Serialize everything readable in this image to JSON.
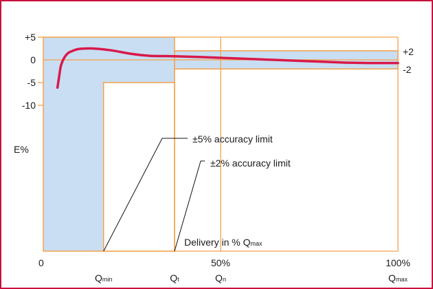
{
  "chart_data": {
    "type": "line",
    "colors": {
      "frame": "#c8103e",
      "band_fill": "#c9def2",
      "band_stroke": "#f5a04a",
      "curve": "#d8194a",
      "leader": "#111111"
    },
    "x_range": [
      0,
      100
    ],
    "y_range": [
      -10,
      5
    ],
    "y_ticks": [
      {
        "value": 5,
        "label": "+5"
      },
      {
        "value": 0,
        "label": "0"
      },
      {
        "value": -5,
        "label": "-5"
      },
      {
        "value": -10,
        "label": "-10"
      }
    ],
    "right_ticks": [
      {
        "value": 2,
        "label": "+2"
      },
      {
        "value": -2,
        "label": "-2"
      }
    ],
    "x_ticks": [
      {
        "value": 0,
        "label": "0",
        "sub": "",
        "sub_label": ""
      },
      {
        "value": 17,
        "label": "",
        "sub": "Q",
        "sub_label": "min"
      },
      {
        "value": 37,
        "label": "",
        "sub": "Q",
        "sub_label": "t"
      },
      {
        "value": 50,
        "label": "50%",
        "sub": "Q",
        "sub_label": "n"
      },
      {
        "value": 100,
        "label": "100%",
        "sub": "Q",
        "sub_label": "max"
      }
    ],
    "ylabel": "E%",
    "xlabel_main": "Delivery in % Q",
    "xlabel_sub": "max",
    "q_min": 17,
    "q_t": 37,
    "limit_5_label": "±5% accuracy limit",
    "limit_2_label": "±2% accuracy limit",
    "series": [
      {
        "x": [
          4,
          4.5,
          5,
          6,
          7,
          8,
          9,
          10,
          12,
          14,
          17,
          20,
          25,
          30,
          37,
          45,
          55,
          65,
          75,
          85,
          92,
          100
        ],
        "values": [
          -6.1,
          -3.5,
          -1.2,
          0.6,
          1.5,
          1.9,
          2.2,
          2.4,
          2.5,
          2.5,
          2.3,
          2.0,
          1.3,
          0.9,
          0.8,
          0.6,
          0.3,
          0.0,
          -0.3,
          -0.6,
          -0.7,
          -0.7
        ]
      }
    ]
  }
}
